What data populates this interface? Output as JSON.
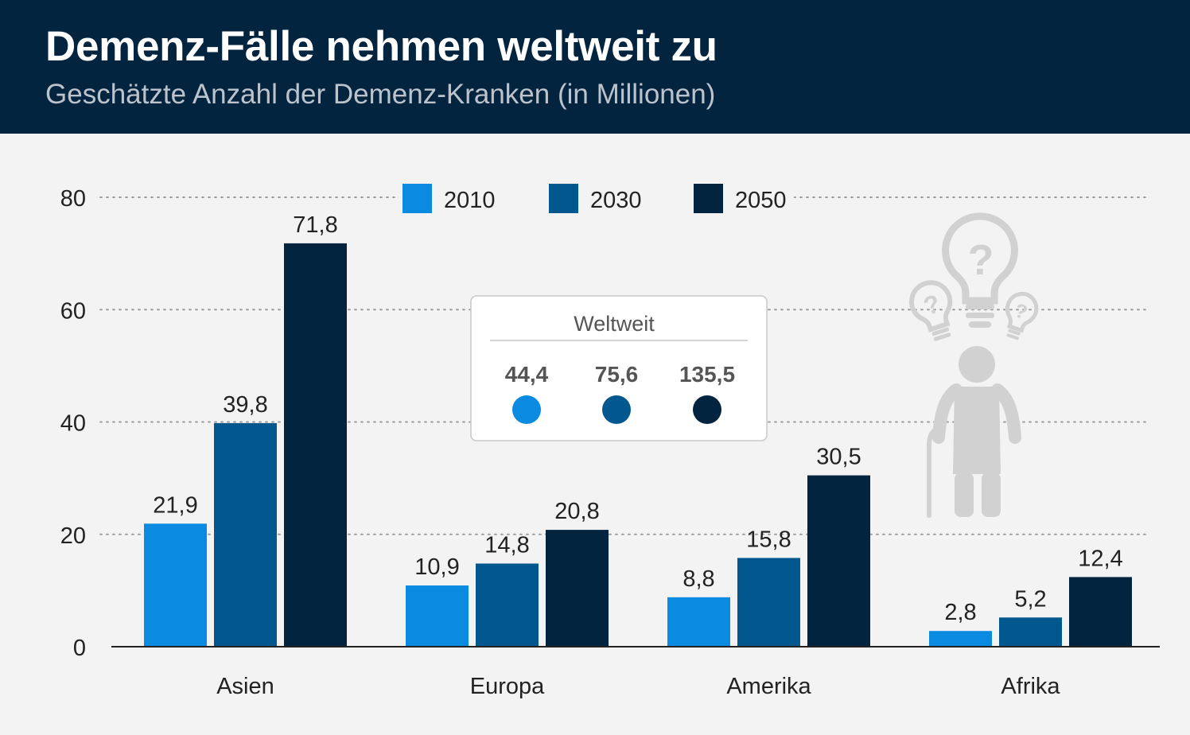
{
  "header": {
    "title": "Demenz-Fälle nehmen weltweit zu",
    "subtitle": "Geschätzte Anzahl der Demenz-Kranken (in Millionen)"
  },
  "colors": {
    "2010": "#0a8ae0",
    "2030": "#03578f",
    "2050": "#03243f",
    "header_bg": "#03243f",
    "background": "#f3f3f3",
    "grid": "#a0a0a0",
    "illustration": "#d1d1d1"
  },
  "worldwide_box": {
    "title": "Weltweit",
    "values": [
      {
        "label": "44,4",
        "series": "2010"
      },
      {
        "label": "75,6",
        "series": "2030"
      },
      {
        "label": "135,5",
        "series": "2050"
      }
    ]
  },
  "illustration": {
    "icon": "dementia-person-lightbulbs-icon"
  },
  "chart_data": {
    "type": "bar",
    "title": "Demenz-Fälle nehmen weltweit zu",
    "subtitle": "Geschätzte Anzahl der Demenz-Kranken (in Millionen)",
    "xlabel": "",
    "ylabel": "",
    "ylim": [
      0,
      80
    ],
    "yticks": [
      0,
      20,
      40,
      60,
      80
    ],
    "ytick_labels": [
      "0",
      "20",
      "40",
      "60",
      "80"
    ],
    "grid": true,
    "legend_position": "top-center",
    "categories": [
      "Asien",
      "Europa",
      "Amerika",
      "Afrika"
    ],
    "series": [
      {
        "name": "2010",
        "values": [
          21.9,
          10.9,
          8.8,
          2.8
        ],
        "labels": [
          "21,9",
          "10,9",
          "8,8",
          "2,8"
        ]
      },
      {
        "name": "2030",
        "values": [
          39.8,
          14.8,
          15.8,
          5.2
        ],
        "labels": [
          "39,8",
          "14,8",
          "15,8",
          "5,2"
        ]
      },
      {
        "name": "2050",
        "values": [
          71.8,
          20.8,
          30.5,
          12.4
        ],
        "labels": [
          "71,8",
          "20,8",
          "30,5",
          "12,4"
        ]
      }
    ]
  }
}
